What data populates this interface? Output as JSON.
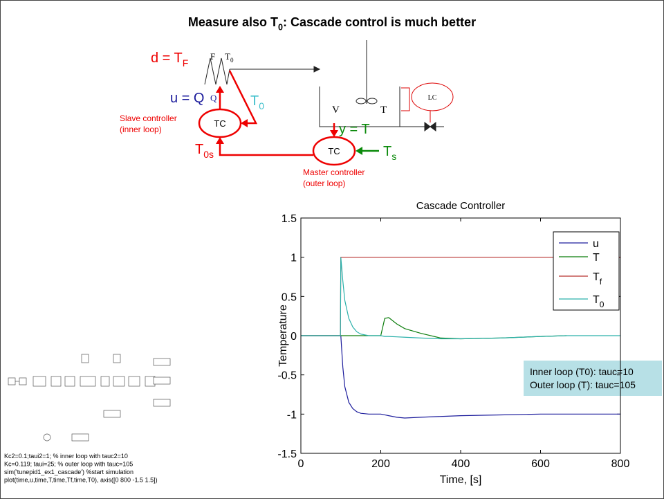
{
  "title": {
    "text": "Measure also T",
    "sub": "0",
    "after": ": Cascade control is much better"
  },
  "diagram": {
    "disturbance": {
      "text": "d = T",
      "sub": "F"
    },
    "exchanger_flow": "F",
    "exchanger_temp": {
      "text": "T",
      "sub": "0"
    },
    "manipulated": "u = Q",
    "heat": "Q",
    "inner_measure": {
      "text": "T",
      "sub": "0"
    },
    "slave_line1": "Slave controller",
    "slave_line2": "(inner loop)",
    "slave_tc": "TC",
    "master_tc": "TC",
    "volume": "V",
    "tank_temp": "T",
    "level_controller": "LC",
    "output": "y = T",
    "inner_setpoint": {
      "text": "T",
      "sub": "0s"
    },
    "setpoint": {
      "text": "T",
      "sub": "s"
    },
    "master_line1": "Master controller",
    "master_line2": "(outer loop)"
  },
  "code_lines": [
    "Kc2=0.1;taui2=1; % inner loop with tauc2=10",
    "Kc=0.119; taui=25; % outer loop with tauc=105",
    "sim('tunepid1_ex1_cascade') %start simulation",
    "plot(time,u,time,T,time,Tf,time,T0), axis([0 800 -1.5 1.5])"
  ],
  "annotation": [
    "Inner loop (T0): tauc=10",
    "Outer loop (T): tauc=105"
  ],
  "chart_data": {
    "type": "line",
    "title": "Cascade Controller",
    "xlabel": "Time, [s]",
    "ylabel": "Temperature",
    "x": [
      0,
      99,
      100,
      105,
      110,
      120,
      130,
      140,
      150,
      170,
      200,
      210,
      220,
      240,
      260,
      300,
      350,
      400,
      500,
      600,
      665,
      700,
      800
    ],
    "series": [
      {
        "name": "u",
        "color": "#1c1c9c",
        "values": [
          0,
          0,
          0,
          -0.4,
          -0.65,
          -0.85,
          -0.93,
          -0.97,
          -0.99,
          -1.0,
          -1.0,
          -1.01,
          -1.02,
          -1.04,
          -1.05,
          -1.04,
          -1.03,
          -1.02,
          -1.01,
          -1.0,
          -1.0,
          -1.0,
          -1.0
        ]
      },
      {
        "name": "T",
        "color": "#0b7d0b",
        "values": [
          0,
          0,
          0,
          0,
          0,
          0,
          0,
          0,
          0,
          0,
          0,
          0.22,
          0.23,
          0.15,
          0.09,
          0.03,
          -0.03,
          -0.04,
          -0.03,
          -0.01,
          0,
          null,
          null
        ]
      },
      {
        "name": "Tf",
        "color": "#b8312f",
        "values": [
          0,
          0,
          1,
          1,
          1,
          1,
          1,
          1,
          1,
          1,
          1,
          1,
          1,
          1,
          1,
          1,
          1,
          1,
          1,
          1,
          1,
          1,
          1
        ]
      },
      {
        "name": "T0",
        "color": "#2ab0aa",
        "values": [
          0,
          0,
          1,
          0.7,
          0.45,
          0.22,
          0.11,
          0.05,
          0.02,
          0,
          0,
          -0.01,
          -0.01,
          -0.015,
          -0.02,
          -0.03,
          -0.04,
          -0.04,
          -0.03,
          -0.01,
          0,
          0,
          0
        ]
      }
    ],
    "xlim": [
      0,
      800
    ],
    "ylim": [
      -1.5,
      1.5
    ],
    "xticks": [
      0,
      200,
      400,
      600,
      800
    ],
    "yticks": [
      -1.5,
      -1,
      -0.5,
      0,
      0.5,
      1,
      1.5
    ],
    "grid": false,
    "legend": "upper right"
  }
}
